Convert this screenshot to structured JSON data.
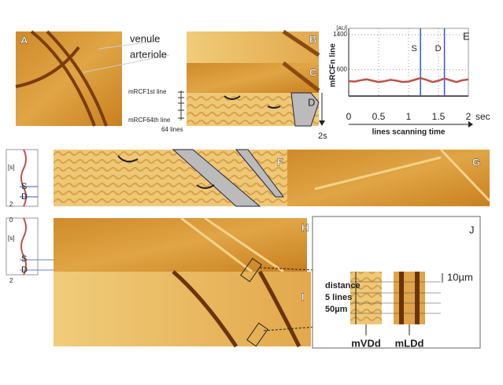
{
  "panel_labels": [
    "A",
    "B",
    "C",
    "D",
    "E",
    "F",
    "G",
    "H",
    "I",
    "J"
  ],
  "annotations": {
    "venule": "venule",
    "arteriole": "arteriole",
    "first_line": "mRCF1st line",
    "last_line": "mRCF64th line",
    "line_count": "64 lines",
    "time": "2s"
  },
  "trace_f": {
    "unit": "[s]",
    "end": "2",
    "S": "S",
    "D": "D"
  },
  "trace_h": {
    "unit": "[s]",
    "start": "0",
    "end": "2",
    "S": "S",
    "D": "D"
  },
  "panel_j": {
    "distance": "distance",
    "lines": "5 lines",
    "length": "50µm",
    "scale": "10µm",
    "left_strip": "mVDd",
    "right_strip": "mLDd"
  },
  "chart_data": {
    "type": "line",
    "y_label": "mRCFn line",
    "y_unit": "[AU]",
    "x_label": "lines scanning time",
    "x_unit": "sec",
    "x": [
      0,
      0.1,
      0.2,
      0.3,
      0.4,
      0.5,
      0.6,
      0.7,
      0.8,
      0.9,
      1,
      1.1,
      1.2,
      1.3,
      1.4,
      1.5,
      1.6,
      1.7,
      1.8,
      1.9,
      2
    ],
    "series": [
      {
        "color": "#c0504d",
        "values": [
          340,
          330,
          360,
          380,
          350,
          320,
          340,
          370,
          350,
          320,
          330,
          370,
          410,
          370,
          320,
          350,
          400,
          360,
          320,
          360,
          380
        ]
      }
    ],
    "xlim": [
      0,
      2
    ],
    "xticks": [
      0,
      0.5,
      1,
      1.5,
      2
    ],
    "ylim": [
      0,
      1400
    ],
    "yticks": [
      600,
      1400
    ],
    "grid": true,
    "markers": [
      {
        "label": "S",
        "x": 1.2,
        "color": "#3355cc"
      },
      {
        "label": "D",
        "x": 1.6,
        "color": "#3355cc"
      }
    ]
  }
}
